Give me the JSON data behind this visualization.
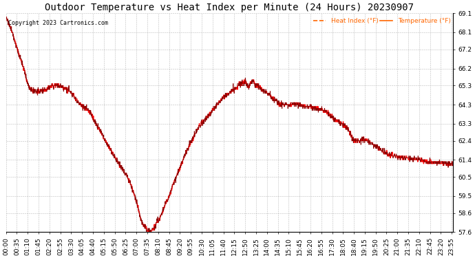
{
  "title": "Outdoor Temperature vs Heat Index per Minute (24 Hours) 20230907",
  "copyright_text": "Copyright 2023 Cartronics.com",
  "legend_heat_index": "Heat Index (°F)",
  "legend_temperature": "Temperature (°F)",
  "line_color": "#ff0000",
  "dark_line_color": "#8b0000",
  "background_color": "#ffffff",
  "grid_color": "#aaaaaa",
  "title_color": "#000000",
  "copyright_color": "#000000",
  "legend_color": "#ff6600",
  "ylim_min": 57.6,
  "ylim_max": 69.1,
  "yticks": [
    57.6,
    58.6,
    59.5,
    60.5,
    61.4,
    62.4,
    63.3,
    64.3,
    65.3,
    66.2,
    67.2,
    68.1,
    69.1
  ],
  "title_fontsize": 10,
  "tick_fontsize": 6.5,
  "line_width": 0.9
}
